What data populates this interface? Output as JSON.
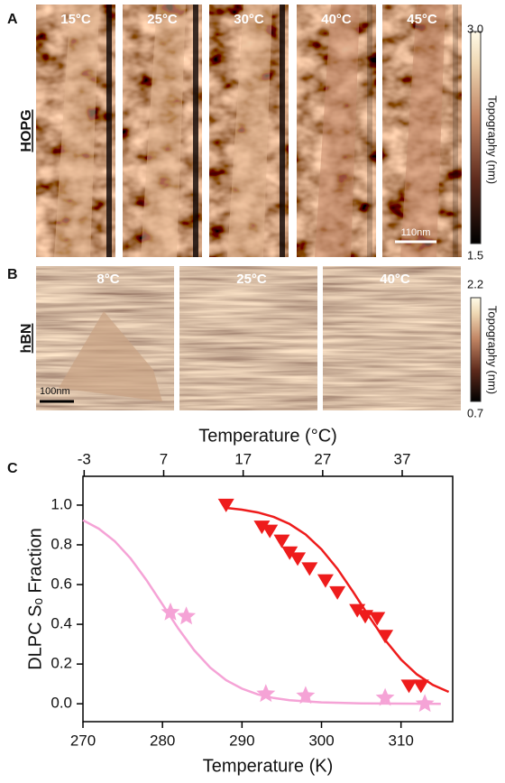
{
  "panel_a": {
    "label": "A",
    "sample": "HOPG",
    "temperatures": [
      "15°C",
      "25°C",
      "30°C",
      "40°C",
      "45°C"
    ],
    "colorbar": {
      "max": "3.0",
      "min": "1.5",
      "label": "Topography (nm)"
    },
    "scale_bar": "110nm"
  },
  "panel_b": {
    "label": "B",
    "sample": "hBN",
    "temperatures": [
      "8°C",
      "25°C",
      "40°C"
    ],
    "colorbar": {
      "max": "2.2",
      "min": "0.7",
      "label": "Topography (nm)"
    },
    "scale_bar": "100nm"
  },
  "panel_c_label": "C",
  "chart_data": {
    "type": "scatter",
    "x_label": "Temperature (K)",
    "x2_label": "Temperature (°C)",
    "y_label": "DLPC Sₒ Fraction",
    "xlim": [
      270,
      316.5
    ],
    "xticks": [
      270,
      280,
      290,
      300,
      310
    ],
    "x2lim": [
      -3.15,
      43.35
    ],
    "x2ticks": [
      -3,
      7,
      17,
      27,
      37
    ],
    "ylim": [
      -0.09,
      1.145
    ],
    "yticks": [
      {
        "value": 0,
        "label": "0.0"
      },
      0.2,
      0.4,
      0.6,
      0.8,
      {
        "value": 1,
        "label": "1.0"
      }
    ],
    "series": [
      {
        "marker": "triangle-down",
        "color": "#ee1c1c",
        "x": [
          288,
          292.5,
          293.5,
          295,
          296,
          297,
          298.5,
          300.5,
          302,
          304.5,
          305.5,
          307,
          308,
          311,
          312.5
        ],
        "values": [
          1.0,
          0.89,
          0.87,
          0.82,
          0.76,
          0.73,
          0.68,
          0.62,
          0.56,
          0.47,
          0.44,
          0.43,
          0.34,
          0.09,
          0.09
        ]
      },
      {
        "marker": "star",
        "color": "#f5a3d6",
        "x": [
          281,
          283,
          293,
          298,
          308,
          313
        ],
        "values": [
          0.46,
          0.44,
          0.05,
          0.04,
          0.03,
          0.0
        ]
      },
      {
        "marker": "line",
        "color": "#ee1c1c",
        "x": [
          288,
          290,
          292,
          294,
          296,
          298,
          300,
          302,
          304,
          306,
          308,
          310,
          312,
          314,
          316
        ],
        "values": [
          0.986,
          0.977,
          0.963,
          0.94,
          0.905,
          0.852,
          0.777,
          0.679,
          0.562,
          0.438,
          0.321,
          0.223,
          0.148,
          0.095,
          0.06
        ]
      },
      {
        "marker": "line",
        "color": "#f5a3d6",
        "x": [
          270,
          272,
          274,
          276,
          278,
          280,
          282,
          284,
          286,
          288,
          290,
          292,
          294,
          296,
          300,
          305,
          310,
          315
        ],
        "values": [
          0.924,
          0.881,
          0.818,
          0.731,
          0.622,
          0.5,
          0.378,
          0.269,
          0.182,
          0.119,
          0.076,
          0.047,
          0.029,
          0.018,
          0.007,
          0.002,
          0.001,
          0.0
        ]
      }
    ]
  }
}
